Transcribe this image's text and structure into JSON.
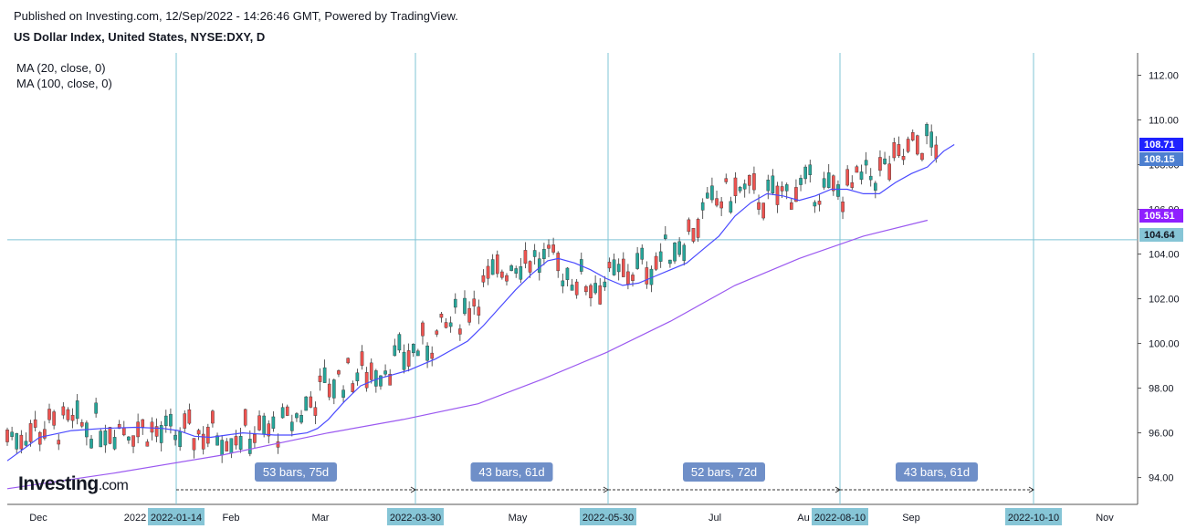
{
  "header": {
    "published": "Published on Investing.com, 12/Sep/2022 - 14:26:46 GMT, Powered by TradingView.",
    "title": "US Dollar Index, United States, NYSE:DXY, D"
  },
  "indicators": [
    {
      "label": "MA (20, close, 0)",
      "color": "#3d3dff"
    },
    {
      "label": "MA (100, close, 0)",
      "color": "#9245ff"
    }
  ],
  "logo": {
    "text": "Investing",
    "suffix": ".com"
  },
  "colors": {
    "up": "#26a69a",
    "down": "#ef5350",
    "grid": "#86c5d6",
    "vline": "#7fc4d5",
    "ma20": "#4a4aff",
    "ma100": "#9b59f0",
    "bubble": "#6f8fc8"
  },
  "chart_data": {
    "type": "line",
    "title": "US Dollar Index, United States, NYSE:DXY, D",
    "y_axis": {
      "ticks": [
        "94.00",
        "96.00",
        "98.00",
        "100.00",
        "102.00",
        "104.00",
        "106.00",
        "108.00",
        "110.00",
        "112.00"
      ],
      "range": [
        92.8,
        113.0
      ]
    },
    "x_axis": {
      "labels": [
        "Dec",
        "2022",
        "Feb",
        "Mar",
        "May",
        "Jul",
        "Au",
        "Sep",
        "Nov"
      ]
    },
    "price_labels": [
      {
        "value": "108.71",
        "color": "#1e22ff"
      },
      {
        "value": "108.15",
        "color": "#4d7fd0"
      },
      {
        "value": "105.51",
        "color": "#8f1fff"
      },
      {
        "value": "104.64",
        "color": "#86c5d6"
      }
    ],
    "horizontal_line": 104.64,
    "date_markers": [
      "2022-01-14",
      "2022-03-30",
      "2022-05-30",
      "2022-08-10",
      "2022-10-10"
    ],
    "ranges": [
      "53 bars, 75d",
      "43 bars, 61d",
      "52 bars, 72d",
      "43 bars, 61d"
    ],
    "ma20_path": [
      [
        0,
        94.75
      ],
      [
        0.03,
        95.8
      ],
      [
        0.06,
        96.1
      ],
      [
        0.09,
        96.2
      ],
      [
        0.12,
        96.25
      ],
      [
        0.145,
        96.2
      ],
      [
        0.16,
        96.1
      ],
      [
        0.175,
        95.85
      ],
      [
        0.19,
        95.8
      ],
      [
        0.205,
        95.9
      ],
      [
        0.22,
        96.0
      ],
      [
        0.235,
        95.95
      ],
      [
        0.25,
        95.9
      ],
      [
        0.265,
        95.9
      ],
      [
        0.28,
        96.0
      ],
      [
        0.29,
        96.2
      ],
      [
        0.3,
        96.6
      ],
      [
        0.315,
        97.4
      ],
      [
        0.33,
        98.1
      ],
      [
        0.345,
        98.4
      ],
      [
        0.36,
        98.6
      ],
      [
        0.375,
        98.8
      ],
      [
        0.39,
        99.1
      ],
      [
        0.4,
        99.3
      ],
      [
        0.415,
        99.7
      ],
      [
        0.43,
        100.1
      ],
      [
        0.445,
        100.8
      ],
      [
        0.46,
        101.6
      ],
      [
        0.475,
        102.4
      ],
      [
        0.49,
        103.1
      ],
      [
        0.505,
        103.7
      ],
      [
        0.515,
        103.8
      ],
      [
        0.53,
        103.6
      ],
      [
        0.545,
        103.3
      ],
      [
        0.56,
        102.9
      ],
      [
        0.575,
        102.6
      ],
      [
        0.59,
        102.7
      ],
      [
        0.605,
        103.0
      ],
      [
        0.62,
        103.3
      ],
      [
        0.635,
        103.6
      ],
      [
        0.65,
        104.2
      ],
      [
        0.665,
        104.8
      ],
      [
        0.68,
        105.7
      ],
      [
        0.695,
        106.3
      ],
      [
        0.71,
        106.7
      ],
      [
        0.725,
        106.6
      ],
      [
        0.74,
        106.4
      ],
      [
        0.755,
        106.6
      ],
      [
        0.77,
        106.9
      ],
      [
        0.785,
        106.9
      ],
      [
        0.8,
        106.7
      ],
      [
        0.815,
        106.7
      ],
      [
        0.83,
        107.2
      ],
      [
        0.845,
        107.6
      ],
      [
        0.86,
        107.9
      ],
      [
        0.875,
        108.6
      ],
      [
        0.885,
        108.9
      ]
    ],
    "ma100_path": [
      [
        0,
        93.5
      ],
      [
        0.1,
        94.2
      ],
      [
        0.2,
        95.0
      ],
      [
        0.3,
        96.0
      ],
      [
        0.37,
        96.6
      ],
      [
        0.44,
        97.3
      ],
      [
        0.5,
        98.4
      ],
      [
        0.56,
        99.6
      ],
      [
        0.62,
        101.0
      ],
      [
        0.68,
        102.6
      ],
      [
        0.74,
        103.8
      ],
      [
        0.8,
        104.8
      ],
      [
        0.86,
        105.51
      ]
    ]
  }
}
